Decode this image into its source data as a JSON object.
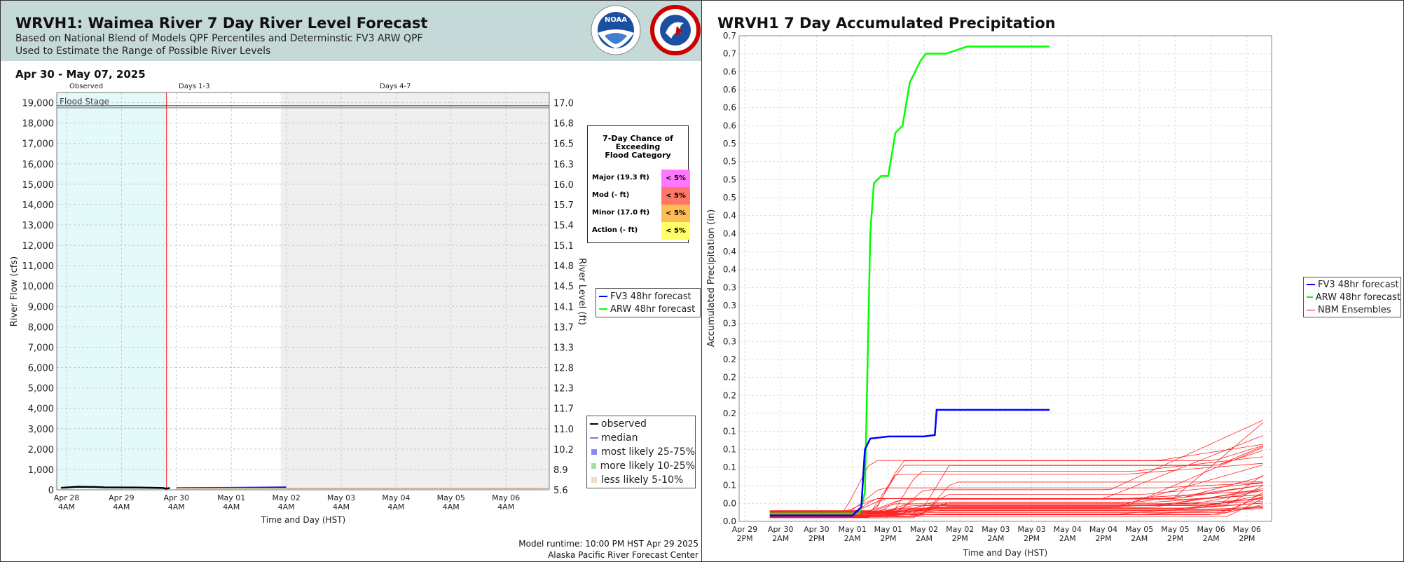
{
  "left": {
    "title": "WRVH1: Waimea River 7 Day River Level Forecast",
    "subtitle1": "Based on National Blend of Models QPF Percentiles and Determinstic FV3 ARW QPF",
    "subtitle2": "Used to Estimate the Range of Possible River Levels",
    "date_range": "Apr 30 - May 07, 2025",
    "footer_runtime": "Model runtime: 10:00 PM HST Apr 29 2025",
    "footer_center": "Alaska Pacific River Forecast Center",
    "logos": [
      "noaa-logo",
      "nws-logo"
    ],
    "flood_table": {
      "title": "7-Day Chance of\nExceeding\nFlood Category",
      "rows": [
        {
          "label": "Major (19.3 ft)",
          "value": "< 5%",
          "color": "#ff77ff"
        },
        {
          "label": "Mod (- ft)",
          "value": "< 5%",
          "color": "#ff7766"
        },
        {
          "label": "Minor (17.0 ft)",
          "value": "< 5%",
          "color": "#ffbb55"
        },
        {
          "label": "Action (- ft)",
          "value": "< 5%",
          "color": "#ffff66"
        }
      ]
    },
    "model_legend": [
      {
        "label": "FV3 48hr forecast",
        "color": "#0000ff"
      },
      {
        "label": "ARW 48hr forecast",
        "color": "#00ff00"
      }
    ],
    "band_legend": [
      {
        "label": "observed",
        "color": "#000000",
        "kind": "line"
      },
      {
        "label": "median",
        "color": "#7777ff",
        "kind": "line"
      },
      {
        "label": "most likely 25-75%",
        "color": "#8888ff",
        "kind": "square"
      },
      {
        "label": "more likely 10-25%",
        "color": "#aaddaa",
        "kind": "square"
      },
      {
        "label": "less likely 5-10%",
        "color": "#eeddcc",
        "kind": "square"
      }
    ]
  },
  "chart_data": [
    {
      "type": "line",
      "xlabel": "Time and Day (HST)",
      "ylabel": "River Flow (cfs)",
      "ylabel_right": "River Level (ft)",
      "x_ticks": [
        "Apr 28\n4AM",
        "Apr 29\n4AM",
        "Apr 30\n4AM",
        "May 01\n4AM",
        "May 02\n4AM",
        "May 03\n4AM",
        "May 04\n4AM",
        "May 05\n4AM",
        "May 06\n4AM"
      ],
      "y_ticks": [
        "0",
        "1,000",
        "2,000",
        "3,000",
        "4,000",
        "5,000",
        "6,000",
        "7,000",
        "8,000",
        "9,000",
        "10,000",
        "11,000",
        "12,000",
        "13,000",
        "14,000",
        "15,000",
        "16,000",
        "17,000",
        "18,000",
        "19,000"
      ],
      "y_ticks_right": [
        "5.6",
        "8.9",
        "10.2",
        "11.0",
        "11.7",
        "12.3",
        "12.8",
        "13.3",
        "13.7",
        "14.1",
        "14.5",
        "14.8",
        "15.1",
        "15.4",
        "15.7",
        "16.0",
        "16.3",
        "16.5",
        "16.8",
        "17.0"
      ],
      "ylim": [
        0,
        19500
      ],
      "regions": [
        "Observed",
        "Days 1-3",
        "Days 4-7"
      ],
      "flood_stage_label": "Flood Stage",
      "flood_stage_value": 18850,
      "grid": true,
      "series": [
        {
          "name": "observed",
          "x": [
            -0.1,
            0.2,
            0.5,
            0.7,
            1.0,
            1.3,
            1.6,
            1.75,
            1.82,
            1.88
          ],
          "y": [
            100,
            150,
            140,
            120,
            115,
            110,
            100,
            90,
            60,
            90
          ]
        },
        {
          "name": "FV3 48hr forecast",
          "x": [
            2.0,
            2.5,
            3.0,
            3.5,
            4.0
          ],
          "y": [
            80,
            85,
            90,
            100,
            110
          ]
        },
        {
          "name": "median",
          "x": [
            2.0,
            3.0,
            4.0,
            5.0,
            6.0,
            7.0,
            8.0,
            8.8
          ],
          "y": [
            60,
            55,
            52,
            50,
            48,
            47,
            46,
            45
          ]
        }
      ]
    },
    {
      "type": "line",
      "title": "WRVH1 7 Day Accumulated Precipitation",
      "xlabel": "Time and Day (HST)",
      "ylabel": "Accumulated Precipitation (in)",
      "x_ticks": [
        "Apr 29\n2PM",
        "Apr 30\n2AM",
        "Apr 30\n2PM",
        "May 01\n2AM",
        "May 01\n2PM",
        "May 02\n2AM",
        "May 02\n2PM",
        "May 03\n2AM",
        "May 03\n2PM",
        "May 04\n2AM",
        "May 04\n2PM",
        "May 05\n2AM",
        "May 05\n2PM",
        "May 06\n2AM",
        "May 06\n2PM"
      ],
      "y_ticks": [
        "0.0",
        "0.0",
        "0.1",
        "0.1",
        "0.1",
        "0.1",
        "0.2",
        "0.2",
        "0.2",
        "0.2",
        "0.3",
        "0.3",
        "0.3",
        "0.3",
        "0.4",
        "0.4",
        "0.4",
        "0.4",
        "0.5",
        "0.5",
        "0.5",
        "0.5",
        "0.6",
        "0.6",
        "0.6",
        "0.6",
        "0.7",
        "0.7"
      ],
      "ylim": [
        0,
        0.675
      ],
      "grid": true,
      "legend": [
        {
          "label": "FV3 48hr forecast",
          "color": "#0000ff"
        },
        {
          "label": "ARW 48hr forecast",
          "color": "#00ff00"
        },
        {
          "label": "NBM Ensembles",
          "color": "#ff0000"
        }
      ],
      "series": [
        {
          "name": "ARW 48hr forecast",
          "x": [
            0.7,
            1.5,
            2.5,
            3.0,
            3.2,
            3.35,
            3.5,
            3.6,
            3.8,
            4.0,
            4.2,
            4.4,
            4.6,
            4.9,
            5.05,
            5.2,
            5.35,
            5.6,
            5.9,
            6.2,
            6.6,
            7.0,
            7.5,
            8.0,
            8.5
          ],
          "y": [
            0.011,
            0.011,
            0.011,
            0.011,
            0.011,
            0.04,
            0.4,
            0.47,
            0.48,
            0.48,
            0.54,
            0.55,
            0.61,
            0.64,
            0.65,
            0.65,
            0.65,
            0.65,
            0.655,
            0.66,
            0.66,
            0.66,
            0.66,
            0.66,
            0.66
          ]
        },
        {
          "name": "FV3 48hr forecast",
          "x": [
            0.7,
            2.5,
            3.0,
            3.25,
            3.35,
            3.5,
            4.0,
            4.5,
            5.0,
            5.3,
            5.35,
            5.5,
            6.0,
            7.0,
            8.0,
            8.5
          ],
          "y": [
            0.008,
            0.008,
            0.008,
            0.02,
            0.1,
            0.115,
            0.118,
            0.118,
            0.118,
            0.12,
            0.155,
            0.155,
            0.155,
            0.155,
            0.155,
            0.155
          ]
        }
      ]
    }
  ]
}
